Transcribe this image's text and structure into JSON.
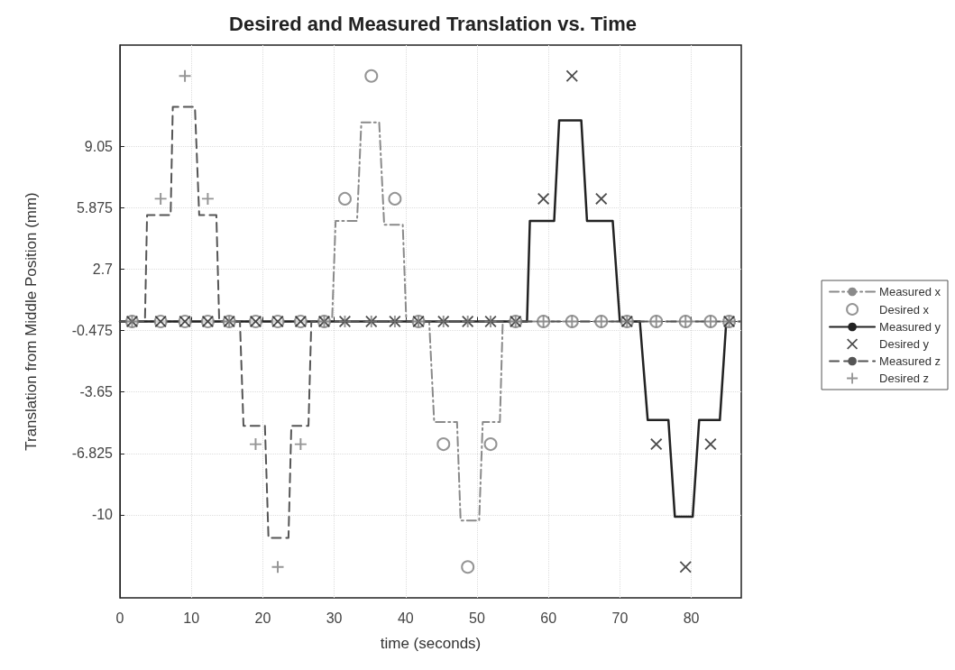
{
  "chart_data": {
    "type": "line",
    "title": "Desired and Measured Translation vs. Time",
    "xlabel": "time (seconds)",
    "ylabel": "Translation from Middle Position (mm)",
    "xlim": [
      0,
      87
    ],
    "xticks": [
      0,
      10,
      20,
      30,
      40,
      50,
      60,
      70,
      80
    ],
    "ylim": [
      -14.3,
      14.3
    ],
    "yticks": [
      -10,
      -6.825,
      -3.65,
      -0.475,
      2.7,
      5.875,
      9.05
    ],
    "grid": true,
    "legend": "right",
    "series": [
      {
        "name": "Measured x",
        "color": "#8a8a8a",
        "line_style": "dashdot",
        "marker": "none",
        "x": [
          0,
          29.7,
          30.2,
          33.2,
          33.8,
          36.3,
          37,
          39.6,
          40.1,
          43.3,
          44,
          47.2,
          47.7,
          50.3,
          50.8,
          53.2,
          53.6,
          87
        ],
        "values": [
          0,
          0,
          5.2,
          5.2,
          10.3,
          10.3,
          5,
          5,
          0,
          0,
          -5.2,
          -5.2,
          -10.3,
          -10.3,
          -5.2,
          -5.2,
          0,
          0
        ]
      },
      {
        "name": "Desired x",
        "type": "scatter",
        "color": "#7a7a7a",
        "marker": "circle",
        "x": [
          1.7,
          5.7,
          9.1,
          12.3,
          15.3,
          19,
          22.1,
          25.3,
          28.6,
          31.5,
          35.2,
          38.5,
          41.8,
          45.3,
          48.7,
          51.9,
          55.4,
          59.3,
          63.3,
          67.4,
          71,
          75.1,
          79.2,
          82.7,
          85.3
        ],
        "values": [
          0,
          0,
          0,
          0,
          0,
          0,
          0,
          0,
          0,
          6.35,
          12.7,
          6.35,
          0,
          -6.35,
          -12.7,
          -6.35,
          0,
          0,
          0,
          0,
          0,
          0,
          0,
          0,
          0
        ]
      },
      {
        "name": "Measured y",
        "color": "#222222",
        "line_style": "solid",
        "marker": "none",
        "x": [
          0,
          57,
          57.4,
          60.8,
          61.5,
          64.6,
          65.4,
          69,
          70,
          72.8,
          73.9,
          76.8,
          77.7,
          80.2,
          81.1,
          84,
          84.9,
          86
        ],
        "values": [
          0,
          0,
          5.2,
          5.2,
          10.4,
          10.4,
          5.2,
          5.2,
          0,
          0,
          -5.1,
          -5.1,
          -10.1,
          -10.1,
          -5.1,
          -5.1,
          0,
          0
        ]
      },
      {
        "name": "Desired y",
        "type": "scatter",
        "color": "#222222",
        "marker": "x",
        "x": [
          1.7,
          5.7,
          9.1,
          12.3,
          15.3,
          19,
          22.1,
          25.3,
          28.6,
          31.5,
          35.2,
          38.5,
          41.8,
          45.3,
          48.7,
          51.9,
          55.4,
          59.3,
          63.3,
          67.4,
          71,
          75.1,
          79.2,
          82.7,
          85.3
        ],
        "values": [
          0,
          0,
          0,
          0,
          0,
          0,
          0,
          0,
          0,
          0,
          0,
          0,
          0,
          0,
          0,
          0,
          0,
          6.35,
          12.7,
          6.35,
          0,
          -6.35,
          -12.7,
          -6.35,
          0
        ]
      },
      {
        "name": "Measured z",
        "color": "#555555",
        "line_style": "dashed",
        "marker": "none",
        "x": [
          0,
          3.5,
          3.8,
          7.1,
          7.4,
          10.5,
          11.1,
          13.5,
          13.9,
          16.8,
          17.3,
          20.3,
          20.8,
          23.6,
          24,
          26.4,
          26.8,
          87
        ],
        "values": [
          0,
          0,
          5.5,
          5.5,
          11.1,
          11.1,
          5.5,
          5.5,
          0,
          0,
          -5.4,
          -5.4,
          -11.2,
          -11.2,
          -5.4,
          -5.4,
          0,
          0
        ]
      },
      {
        "name": "Desired z",
        "type": "scatter",
        "color": "#7a7a7a",
        "marker": "cross",
        "x": [
          1.7,
          5.7,
          9.1,
          12.3,
          15.3,
          19,
          22.1,
          25.3,
          28.6,
          31.5,
          35.2,
          38.5,
          41.8,
          45.3,
          48.7,
          51.9,
          55.4,
          59.3,
          63.3,
          67.4,
          71,
          75.1,
          79.2,
          82.7,
          85.3
        ],
        "values": [
          0,
          6.35,
          12.7,
          6.35,
          0,
          -6.35,
          -12.7,
          -6.35,
          0,
          0,
          0,
          0,
          0,
          0,
          0,
          0,
          0,
          0,
          0,
          0,
          0,
          0,
          0,
          0,
          0
        ]
      }
    ]
  }
}
